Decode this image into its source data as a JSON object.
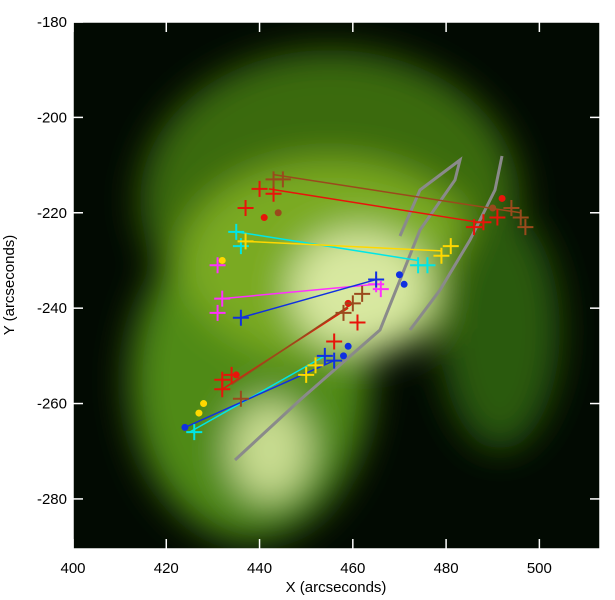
{
  "chart_data": {
    "type": "scatter",
    "xlabel": "X (arcseconds)",
    "ylabel": "Y (arcseconds)",
    "xlim": [
      400,
      513
    ],
    "ylim": [
      -290.5,
      -180
    ],
    "xticks": [
      400,
      420,
      440,
      460,
      480,
      500
    ],
    "yticks": [
      -280,
      -260,
      -240,
      -220,
      -200,
      -180
    ],
    "series": [
      {
        "color": "#e8140a",
        "marker": "cross",
        "x": [
          440,
          443,
          437,
          486,
          488,
          491,
          432,
          432,
          434,
          456,
          461
        ],
        "y": [
          -215,
          -216,
          -219,
          -223,
          -222,
          -221,
          -257,
          -255,
          -254,
          -247,
          -243
        ]
      },
      {
        "color": "#e8140a",
        "marker": "dot",
        "x": [
          441,
          492,
          459,
          435
        ],
        "y": [
          -221,
          -217,
          -239,
          -254
        ]
      },
      {
        "color": "#9a4a1c",
        "marker": "cross",
        "x": [
          443,
          445,
          496,
          497,
          494,
          458,
          460,
          462,
          436
        ],
        "y": [
          -213,
          -213,
          -221,
          -223,
          -219,
          -241,
          -239,
          -237,
          -259
        ]
      },
      {
        "color": "#9a4a1c",
        "marker": "dot",
        "x": [
          490,
          444
        ],
        "y": [
          -219,
          -220
        ]
      },
      {
        "color": "#00e6e6",
        "marker": "cross",
        "x": [
          435,
          436,
          474,
          476,
          426
        ],
        "y": [
          -224,
          -227,
          -231,
          -231,
          -266
        ]
      },
      {
        "color": "#ffd800",
        "marker": "cross",
        "x": [
          437,
          479,
          481,
          452,
          450
        ],
        "y": [
          -226,
          -229,
          -227,
          -252,
          -254
        ]
      },
      {
        "color": "#ffd800",
        "marker": "dot",
        "x": [
          427,
          428,
          432
        ],
        "y": [
          -262,
          -260,
          -230
        ]
      },
      {
        "color": "#ff30ff",
        "marker": "cross",
        "x": [
          431,
          432,
          431,
          465,
          466
        ],
        "y": [
          -231,
          -238,
          -241,
          -235,
          -236
        ]
      },
      {
        "color": "#1030e0",
        "marker": "cross",
        "x": [
          436,
          465,
          456,
          454
        ],
        "y": [
          -242,
          -234,
          -251,
          -250
        ]
      },
      {
        "color": "#1030e0",
        "marker": "dot",
        "x": [
          424,
          470,
          471,
          458,
          459
        ],
        "y": [
          -265,
          -233,
          -235,
          -250,
          -248
        ]
      }
    ],
    "lines": [
      {
        "color": "#e8140a",
        "x": [
          442,
          487
        ],
        "y": [
          -215,
          -222
        ]
      },
      {
        "color": "#e8140a",
        "x": [
          432,
          459
        ],
        "y": [
          -257,
          -240
        ]
      },
      {
        "color": "#9a4a1c",
        "x": [
          443,
          496
        ],
        "y": [
          -212,
          -220
        ]
      },
      {
        "color": "#9a4a1c",
        "x": [
          434,
          460
        ],
        "y": [
          -256,
          -239
        ]
      },
      {
        "color": "#00e6e6",
        "x": [
          435,
          474
        ],
        "y": [
          -224,
          -230
        ]
      },
      {
        "color": "#00e6e6",
        "x": [
          425,
          454
        ],
        "y": [
          -266,
          -250
        ]
      },
      {
        "color": "#ffd800",
        "x": [
          437,
          479
        ],
        "y": [
          -226,
          -228
        ]
      },
      {
        "color": "#ff30ff",
        "x": [
          432,
          465
        ],
        "y": [
          -238,
          -235
        ]
      },
      {
        "color": "#1030e0",
        "x": [
          436,
          465
        ],
        "y": [
          -242,
          -234
        ]
      },
      {
        "color": "#1030e0",
        "x": [
          424,
          456
        ],
        "y": [
          -265,
          -251
        ]
      }
    ]
  }
}
